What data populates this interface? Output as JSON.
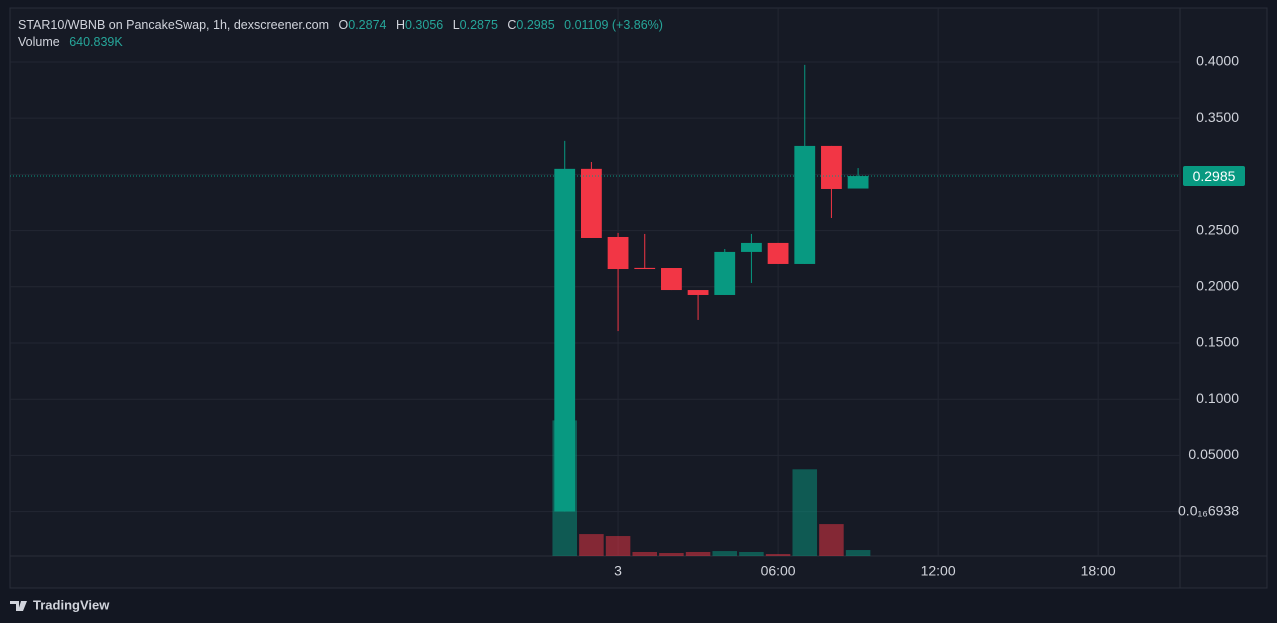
{
  "chart_data": {
    "type": "candlestick",
    "title": "STAR10/WBNB on PancakeSwap, 1h, dexscreener.com",
    "ohlc_labels": [
      "O",
      "H",
      "L",
      "C"
    ],
    "change": "0.01109 (+3.86%)",
    "volume_name": "Volume",
    "volume_value_label": "640.839K",
    "x": [
      -2,
      -1,
      0,
      1,
      2,
      3,
      4,
      5,
      6,
      7,
      8,
      9
    ],
    "open": [
      0.0001,
      0.3049,
      0.2443,
      0.2168,
      0.2167,
      0.1971,
      0.1927,
      0.231,
      0.239,
      0.2203,
      0.3253,
      0.2874
    ],
    "high": [
      0.3298,
      0.311,
      0.2479,
      0.247,
      0.2167,
      0.1971,
      0.2336,
      0.247,
      0.239,
      0.3974,
      0.3253,
      0.3056
    ],
    "low": [
      0,
      0.2434,
      0.1606,
      0.2158,
      0.1971,
      0.1705,
      0.1927,
      0.2034,
      0.2203,
      0.2203,
      0.2612,
      0.2875
    ],
    "close": [
      0.3049,
      0.2434,
      0.2158,
      0.2158,
      0.1971,
      0.1927,
      0.231,
      0.239,
      0.2203,
      0.3253,
      0.287,
      0.2985
    ],
    "volume": [
      14530000,
      2350000,
      2140000,
      430000,
      320000,
      430000,
      530000,
      430000,
      210000,
      9290000,
      3420000,
      640839
    ],
    "up_color": "#089981",
    "down_color": "#f23645",
    "xlim": [
      -22.8,
      21.07
    ],
    "xticks": [
      {
        "value": 0,
        "label": "3"
      },
      {
        "value": 6,
        "label": "06:00"
      },
      {
        "value": 12,
        "label": "12:00"
      },
      {
        "value": 18,
        "label": "18:00"
      }
    ],
    "ylim": [
      -0.0395,
      0.448
    ],
    "yticks": [
      {
        "value": 6.938e-17,
        "label": "0.0₁₆6938"
      },
      {
        "value": 0.05,
        "label": "0.05000"
      },
      {
        "value": 0.1,
        "label": "0.1000"
      },
      {
        "value": 0.15,
        "label": "0.1500"
      },
      {
        "value": 0.2,
        "label": "0.2000"
      },
      {
        "value": 0.25,
        "label": "0.2500"
      },
      {
        "value": 0.3,
        "label": "0.3000"
      },
      {
        "value": 0.35,
        "label": "0.3500"
      },
      {
        "value": 0.4,
        "label": "0.4000"
      }
    ],
    "volume_ylim": [
      0,
      15000000
    ],
    "grid": true,
    "brand": "TradingView"
  }
}
